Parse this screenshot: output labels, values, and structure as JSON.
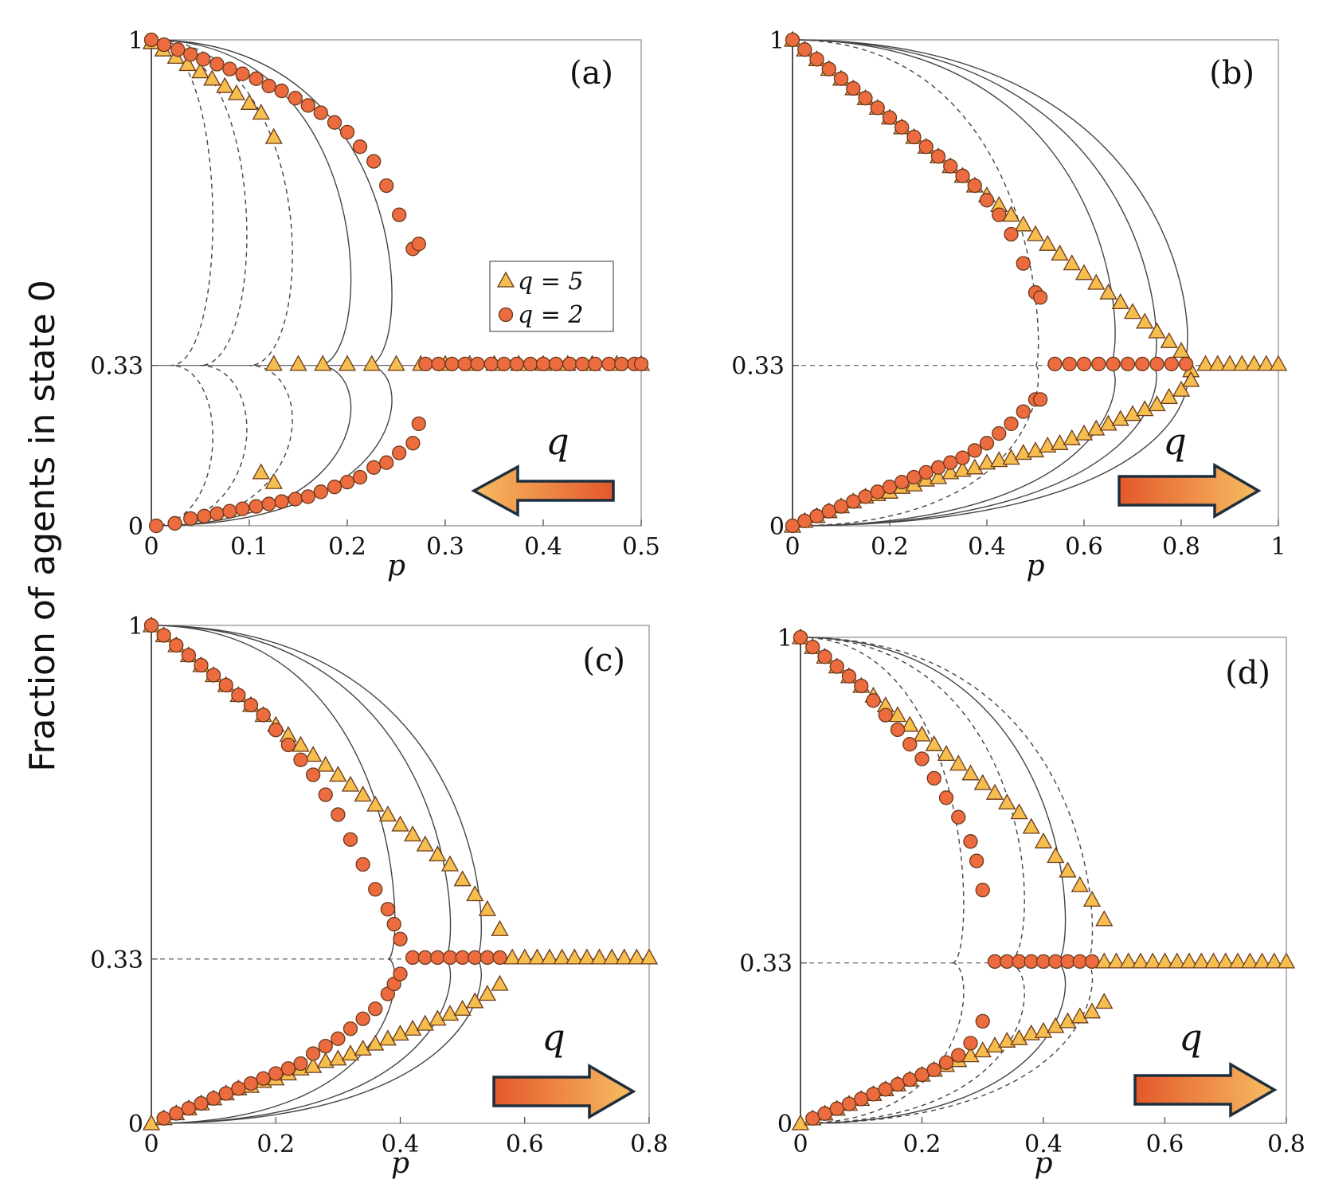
{
  "y_label": "Fraction of agents in state 0",
  "colors": {
    "circle": "#ec6b3f",
    "triangle": "#f6bd4f",
    "arrow_dark": "#e4582b",
    "arrow_light": "#f7bd62",
    "marker_edge": "#6a3a1c"
  },
  "legend": {
    "triangle": "q = 5",
    "circle": "q = 2"
  },
  "chart_data": [
    {
      "id": "a",
      "type": "scatter",
      "panel_label": "(a)",
      "xlabel": "p",
      "ylabel": "Fraction of agents in state 0",
      "xlim": [
        0,
        0.5
      ],
      "ylim": [
        0,
        1
      ],
      "xticks": [
        "0",
        "0.1",
        "0.2",
        "0.3",
        "0.4",
        "0.5"
      ],
      "yticks": [
        "0",
        "0.33",
        "1"
      ],
      "arrow_label": "q",
      "arrow_direction": "left",
      "series": [
        {
          "name": "q = 5",
          "marker": "triangle",
          "x": [
            0,
            0.012,
            0.025,
            0.037,
            0.05,
            0.062,
            0.075,
            0.087,
            0.1,
            0.112,
            0.125,
            0.112,
            0.125,
            0.125,
            0.15,
            0.175,
            0.2,
            0.225,
            0.25,
            0.275,
            0.3,
            0.325,
            0.35,
            0.375,
            0.4,
            0.425,
            0.45,
            0.475,
            0.5
          ],
          "y": [
            0.995,
            0.98,
            0.965,
            0.95,
            0.935,
            0.92,
            0.905,
            0.89,
            0.87,
            0.85,
            0.8,
            0.11,
            0.09,
            0.333,
            0.333,
            0.333,
            0.333,
            0.333,
            0.333,
            0.333,
            0.333,
            0.333,
            0.333,
            0.333,
            0.333,
            0.333,
            0.333,
            0.333,
            0.333
          ]
        },
        {
          "name": "q = 2",
          "marker": "circle",
          "x": [
            0,
            0.013,
            0.027,
            0.04,
            0.053,
            0.067,
            0.08,
            0.093,
            0.107,
            0.12,
            0.133,
            0.147,
            0.16,
            0.173,
            0.187,
            0.2,
            0.213,
            0.227,
            0.24,
            0.253,
            0.267,
            0.273,
            0.005,
            0.024,
            0.04,
            0.054,
            0.067,
            0.08,
            0.093,
            0.107,
            0.12,
            0.133,
            0.147,
            0.16,
            0.173,
            0.187,
            0.2,
            0.213,
            0.227,
            0.24,
            0.253,
            0.267,
            0.273,
            0.28,
            0.293,
            0.307,
            0.32,
            0.333,
            0.347,
            0.36,
            0.373,
            0.387,
            0.4,
            0.413,
            0.427,
            0.44,
            0.453,
            0.467,
            0.48,
            0.493,
            0.5
          ],
          "y": [
            1,
            0.99,
            0.98,
            0.97,
            0.96,
            0.95,
            0.94,
            0.93,
            0.92,
            0.905,
            0.895,
            0.88,
            0.865,
            0.85,
            0.83,
            0.81,
            0.78,
            0.75,
            0.7,
            0.64,
            0.57,
            0.58,
            0.0,
            0.005,
            0.015,
            0.02,
            0.025,
            0.03,
            0.035,
            0.04,
            0.045,
            0.05,
            0.055,
            0.06,
            0.07,
            0.08,
            0.09,
            0.1,
            0.12,
            0.13,
            0.15,
            0.17,
            0.21,
            0.333,
            0.333,
            0.333,
            0.333,
            0.333,
            0.333,
            0.333,
            0.333,
            0.333,
            0.333,
            0.333,
            0.333,
            0.333,
            0.333,
            0.333,
            0.333,
            0.333,
            0.333
          ]
        }
      ]
    },
    {
      "id": "b",
      "type": "scatter",
      "panel_label": "(b)",
      "xlabel": "p",
      "ylabel": "Fraction of agents in state 0",
      "xlim": [
        0,
        1
      ],
      "ylim": [
        0,
        1
      ],
      "xticks": [
        "0",
        "0.2",
        "0.4",
        "0.6",
        "0.8",
        "1"
      ],
      "yticks": [
        "0",
        "0.33",
        "1"
      ],
      "arrow_label": "q",
      "arrow_direction": "right",
      "series": [
        {
          "name": "q = 5",
          "marker": "triangle",
          "x": [
            0,
            0.025,
            0.05,
            0.075,
            0.1,
            0.125,
            0.15,
            0.175,
            0.2,
            0.225,
            0.25,
            0.275,
            0.3,
            0.325,
            0.35,
            0.375,
            0.4,
            0.425,
            0.45,
            0.475,
            0.5,
            0.525,
            0.55,
            0.575,
            0.6,
            0.625,
            0.65,
            0.675,
            0.7,
            0.725,
            0.75,
            0.775,
            0.8,
            0.82,
            0,
            0.025,
            0.05,
            0.075,
            0.1,
            0.125,
            0.15,
            0.175,
            0.2,
            0.225,
            0.25,
            0.275,
            0.3,
            0.325,
            0.35,
            0.375,
            0.4,
            0.425,
            0.45,
            0.475,
            0.5,
            0.525,
            0.55,
            0.575,
            0.6,
            0.625,
            0.65,
            0.675,
            0.7,
            0.725,
            0.75,
            0.775,
            0.8,
            0.82,
            0.85,
            0.875,
            0.9,
            0.925,
            0.95,
            0.975,
            1.0
          ],
          "y": [
            1,
            0.98,
            0.96,
            0.94,
            0.92,
            0.9,
            0.88,
            0.86,
            0.84,
            0.82,
            0.8,
            0.78,
            0.76,
            0.74,
            0.72,
            0.7,
            0.68,
            0.66,
            0.64,
            0.62,
            0.6,
            0.58,
            0.56,
            0.54,
            0.52,
            0.5,
            0.48,
            0.46,
            0.44,
            0.42,
            0.4,
            0.38,
            0.36,
            0.32,
            0,
            0.01,
            0.02,
            0.03,
            0.04,
            0.05,
            0.06,
            0.065,
            0.07,
            0.08,
            0.085,
            0.095,
            0.1,
            0.11,
            0.115,
            0.12,
            0.13,
            0.135,
            0.14,
            0.15,
            0.155,
            0.165,
            0.17,
            0.18,
            0.19,
            0.2,
            0.21,
            0.22,
            0.23,
            0.24,
            0.25,
            0.265,
            0.28,
            0.3,
            0.333,
            0.333,
            0.333,
            0.333,
            0.333,
            0.333,
            0.333
          ]
        },
        {
          "name": "q = 2",
          "marker": "circle",
          "x": [
            0,
            0.025,
            0.05,
            0.075,
            0.1,
            0.125,
            0.15,
            0.175,
            0.2,
            0.225,
            0.25,
            0.275,
            0.3,
            0.325,
            0.35,
            0.375,
            0.4,
            0.425,
            0.45,
            0.475,
            0.5,
            0.51,
            0,
            0.025,
            0.05,
            0.075,
            0.1,
            0.125,
            0.15,
            0.175,
            0.2,
            0.225,
            0.25,
            0.275,
            0.3,
            0.325,
            0.35,
            0.375,
            0.4,
            0.425,
            0.45,
            0.475,
            0.5,
            0.51,
            0.54,
            0.57,
            0.6,
            0.63,
            0.66,
            0.69,
            0.72,
            0.75,
            0.78,
            0.81
          ],
          "y": [
            1,
            0.98,
            0.96,
            0.94,
            0.92,
            0.9,
            0.88,
            0.86,
            0.84,
            0.82,
            0.8,
            0.78,
            0.76,
            0.74,
            0.72,
            0.7,
            0.67,
            0.64,
            0.6,
            0.54,
            0.48,
            0.47,
            0,
            0.01,
            0.02,
            0.03,
            0.04,
            0.05,
            0.06,
            0.07,
            0.08,
            0.09,
            0.1,
            0.11,
            0.12,
            0.13,
            0.14,
            0.155,
            0.17,
            0.19,
            0.21,
            0.235,
            0.26,
            0.26,
            0.333,
            0.333,
            0.333,
            0.333,
            0.333,
            0.333,
            0.333,
            0.333,
            0.333,
            0.333
          ]
        }
      ]
    },
    {
      "id": "c",
      "type": "scatter",
      "panel_label": "(c)",
      "xlabel": "p",
      "ylabel": "Fraction of agents in state 0",
      "xlim": [
        0,
        0.8
      ],
      "ylim": [
        0,
        1
      ],
      "xticks": [
        "0",
        "0.2",
        "0.4",
        "0.6",
        "0.8"
      ],
      "yticks": [
        "0",
        "0.33",
        "1"
      ],
      "arrow_label": "q",
      "arrow_direction": "right",
      "series": [
        {
          "name": "q = 5",
          "marker": "triangle",
          "x": [
            0,
            0.02,
            0.04,
            0.06,
            0.08,
            0.1,
            0.12,
            0.14,
            0.16,
            0.18,
            0.2,
            0.22,
            0.24,
            0.26,
            0.28,
            0.3,
            0.32,
            0.34,
            0.36,
            0.38,
            0.4,
            0.42,
            0.44,
            0.46,
            0.48,
            0.5,
            0.52,
            0.54,
            0.56,
            0,
            0.02,
            0.04,
            0.06,
            0.08,
            0.1,
            0.12,
            0.14,
            0.16,
            0.18,
            0.2,
            0.22,
            0.24,
            0.26,
            0.28,
            0.3,
            0.32,
            0.34,
            0.36,
            0.38,
            0.4,
            0.42,
            0.44,
            0.46,
            0.48,
            0.5,
            0.52,
            0.54,
            0.56,
            0.58,
            0.6,
            0.62,
            0.64,
            0.66,
            0.68,
            0.7,
            0.72,
            0.74,
            0.76,
            0.78,
            0.8
          ],
          "y": [
            1,
            0.98,
            0.96,
            0.94,
            0.92,
            0.9,
            0.88,
            0.86,
            0.84,
            0.82,
            0.8,
            0.78,
            0.76,
            0.74,
            0.72,
            0.7,
            0.68,
            0.66,
            0.64,
            0.62,
            0.6,
            0.58,
            0.56,
            0.54,
            0.52,
            0.49,
            0.46,
            0.43,
            0.39,
            0,
            0.01,
            0.02,
            0.03,
            0.04,
            0.05,
            0.06,
            0.07,
            0.075,
            0.085,
            0.09,
            0.1,
            0.11,
            0.115,
            0.125,
            0.13,
            0.14,
            0.15,
            0.16,
            0.17,
            0.18,
            0.19,
            0.2,
            0.21,
            0.22,
            0.23,
            0.245,
            0.26,
            0.28,
            0.333,
            0.333,
            0.333,
            0.333,
            0.333,
            0.333,
            0.333,
            0.333,
            0.333,
            0.333,
            0.333,
            0.333
          ]
        },
        {
          "name": "q = 2",
          "marker": "circle",
          "x": [
            0,
            0.02,
            0.04,
            0.06,
            0.08,
            0.1,
            0.12,
            0.14,
            0.16,
            0.18,
            0.2,
            0.22,
            0.24,
            0.26,
            0.28,
            0.3,
            0.32,
            0.34,
            0.36,
            0.38,
            0.39,
            0.4,
            0.02,
            0.04,
            0.06,
            0.08,
            0.1,
            0.12,
            0.14,
            0.16,
            0.18,
            0.2,
            0.22,
            0.24,
            0.26,
            0.28,
            0.3,
            0.32,
            0.34,
            0.36,
            0.38,
            0.39,
            0.4,
            0.42,
            0.44,
            0.46,
            0.48,
            0.5,
            0.52,
            0.54,
            0.56
          ],
          "y": [
            1,
            0.98,
            0.96,
            0.94,
            0.92,
            0.9,
            0.88,
            0.86,
            0.84,
            0.82,
            0.79,
            0.76,
            0.73,
            0.7,
            0.66,
            0.62,
            0.57,
            0.52,
            0.47,
            0.43,
            0.4,
            0.37,
            0.01,
            0.02,
            0.03,
            0.04,
            0.05,
            0.06,
            0.07,
            0.08,
            0.09,
            0.1,
            0.11,
            0.12,
            0.14,
            0.155,
            0.17,
            0.19,
            0.21,
            0.23,
            0.26,
            0.28,
            0.3,
            0.333,
            0.333,
            0.333,
            0.333,
            0.333,
            0.333,
            0.333,
            0.333
          ]
        }
      ]
    },
    {
      "id": "d",
      "type": "scatter",
      "panel_label": "(d)",
      "xlabel": "p",
      "ylabel": "Fraction of agents in state 0",
      "xlim": [
        0,
        0.8
      ],
      "ylim": [
        0,
        1
      ],
      "xticks": [
        "0",
        "0.2",
        "0.4",
        "0.6",
        "0.8"
      ],
      "yticks": [
        "0",
        "0.33",
        "1"
      ],
      "arrow_label": "q",
      "arrow_direction": "right",
      "series": [
        {
          "name": "q = 5",
          "marker": "triangle",
          "x": [
            0,
            0.02,
            0.04,
            0.06,
            0.08,
            0.1,
            0.12,
            0.14,
            0.16,
            0.18,
            0.2,
            0.22,
            0.24,
            0.26,
            0.28,
            0.3,
            0.32,
            0.34,
            0.36,
            0.38,
            0.4,
            0.42,
            0.44,
            0.46,
            0.48,
            0.5,
            0,
            0.02,
            0.04,
            0.06,
            0.08,
            0.1,
            0.12,
            0.14,
            0.16,
            0.18,
            0.2,
            0.22,
            0.24,
            0.26,
            0.28,
            0.3,
            0.32,
            0.34,
            0.36,
            0.38,
            0.4,
            0.42,
            0.44,
            0.46,
            0.48,
            0.5,
            0.5,
            0.52,
            0.54,
            0.56,
            0.58,
            0.6,
            0.62,
            0.64,
            0.66,
            0.68,
            0.7,
            0.72,
            0.74,
            0.76,
            0.78,
            0.8
          ],
          "y": [
            1,
            0.98,
            0.96,
            0.94,
            0.92,
            0.9,
            0.88,
            0.86,
            0.84,
            0.82,
            0.8,
            0.78,
            0.76,
            0.74,
            0.72,
            0.7,
            0.68,
            0.66,
            0.64,
            0.61,
            0.58,
            0.55,
            0.52,
            0.49,
            0.46,
            0.42,
            0,
            0.01,
            0.02,
            0.03,
            0.04,
            0.05,
            0.06,
            0.07,
            0.08,
            0.09,
            0.1,
            0.11,
            0.12,
            0.13,
            0.14,
            0.15,
            0.16,
            0.17,
            0.175,
            0.185,
            0.19,
            0.2,
            0.21,
            0.22,
            0.23,
            0.25,
            0.333,
            0.333,
            0.333,
            0.333,
            0.333,
            0.333,
            0.333,
            0.333,
            0.333,
            0.333,
            0.333,
            0.333,
            0.333,
            0.333,
            0.333,
            0.333
          ]
        },
        {
          "name": "q = 2",
          "marker": "circle",
          "x": [
            0,
            0.02,
            0.04,
            0.06,
            0.08,
            0.1,
            0.12,
            0.14,
            0.16,
            0.18,
            0.2,
            0.22,
            0.24,
            0.26,
            0.28,
            0.29,
            0.3,
            0.02,
            0.04,
            0.06,
            0.08,
            0.1,
            0.12,
            0.14,
            0.16,
            0.18,
            0.2,
            0.22,
            0.24,
            0.26,
            0.28,
            0.3,
            0.32,
            0.34,
            0.36,
            0.38,
            0.4,
            0.42,
            0.44,
            0.46,
            0.48
          ],
          "y": [
            1,
            0.98,
            0.96,
            0.94,
            0.92,
            0.9,
            0.87,
            0.84,
            0.81,
            0.78,
            0.75,
            0.71,
            0.67,
            0.63,
            0.58,
            0.54,
            0.48,
            0.01,
            0.02,
            0.03,
            0.04,
            0.05,
            0.06,
            0.07,
            0.08,
            0.09,
            0.1,
            0.11,
            0.125,
            0.14,
            0.165,
            0.21,
            0.333,
            0.333,
            0.333,
            0.333,
            0.333,
            0.333,
            0.333,
            0.333,
            0.333
          ]
        }
      ]
    }
  ]
}
